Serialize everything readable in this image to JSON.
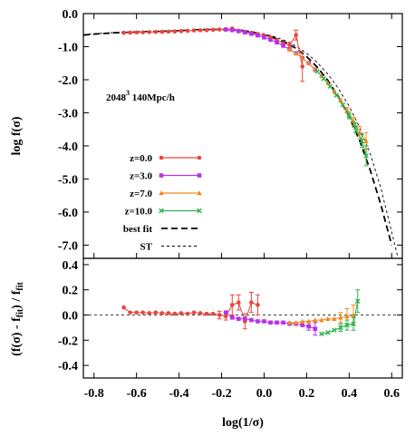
{
  "chart_data": [
    {
      "type": "scatter",
      "panel": "top",
      "xlim": [
        -0.85,
        0.65
      ],
      "ylim": [
        -7.4,
        0.0
      ],
      "yticks": [
        "0.0",
        "-1.0",
        "-2.0",
        "-3.0",
        "-4.0",
        "-5.0",
        "-6.0",
        "-7.0"
      ],
      "ytick_values": [
        0,
        -1,
        -2,
        -3,
        -4,
        -5,
        -6,
        -7
      ],
      "ylabel": "log f(σ)",
      "annotation": {
        "base": "2048",
        "sup": "3",
        "rest": " 140Mpc/h"
      },
      "legend_position": "lower-left",
      "series": [
        {
          "name": "z=0.0",
          "color": "#e8453c",
          "marker": "circle",
          "x": [
            -0.66,
            -0.63,
            -0.6,
            -0.57,
            -0.54,
            -0.51,
            -0.48,
            -0.45,
            -0.42,
            -0.39,
            -0.36,
            -0.33,
            -0.3,
            -0.27,
            -0.24,
            -0.21,
            -0.18,
            -0.15,
            -0.12,
            -0.09,
            -0.06,
            -0.03,
            0.0,
            0.03,
            0.06,
            0.09,
            0.12,
            0.15,
            0.18
          ],
          "y": [
            -0.58,
            -0.575,
            -0.57,
            -0.565,
            -0.56,
            -0.555,
            -0.55,
            -0.545,
            -0.54,
            -0.53,
            -0.52,
            -0.51,
            -0.505,
            -0.5,
            -0.49,
            -0.48,
            -0.48,
            -0.45,
            -0.52,
            -0.55,
            -0.58,
            -0.62,
            -0.66,
            -0.72,
            -0.8,
            -0.9,
            -0.95,
            -0.65,
            -1.6
          ],
          "err": [
            0,
            0,
            0,
            0,
            0,
            0,
            0,
            0,
            0,
            0,
            0,
            0,
            0,
            0,
            0,
            0,
            0,
            0,
            0,
            0,
            0,
            0,
            0,
            0,
            0,
            0,
            0.08,
            0.15,
            0.45
          ]
        },
        {
          "name": "z=3.0",
          "color": "#b632e8",
          "marker": "square",
          "x": [
            -0.18,
            -0.15,
            -0.12,
            -0.09,
            -0.06,
            -0.03,
            0.0,
            0.03,
            0.06,
            0.09,
            0.12,
            0.15,
            0.18,
            0.21,
            0.24
          ],
          "y": [
            -0.48,
            -0.5,
            -0.53,
            -0.57,
            -0.61,
            -0.66,
            -0.72,
            -0.79,
            -0.87,
            -0.97,
            -1.08,
            -1.2,
            -1.35,
            -1.5,
            -1.7
          ],
          "err": [
            0,
            0,
            0,
            0,
            0,
            0,
            0,
            0,
            0,
            0,
            0,
            0,
            0,
            0,
            0
          ]
        },
        {
          "name": "z=7.0",
          "color": "#f08a1c",
          "marker": "triangle",
          "x": [
            0.12,
            0.15,
            0.18,
            0.21,
            0.24,
            0.27,
            0.3,
            0.33,
            0.36,
            0.39,
            0.42,
            0.45,
            0.48
          ],
          "y": [
            -1.08,
            -1.2,
            -1.35,
            -1.5,
            -1.68,
            -1.88,
            -2.1,
            -2.35,
            -2.62,
            -2.92,
            -3.25,
            -3.6,
            -3.85
          ],
          "err": [
            0,
            0,
            0,
            0,
            0,
            0,
            0,
            0,
            0.05,
            0.08,
            0.12,
            0.18,
            0.25
          ]
        },
        {
          "name": "z=10.0",
          "color": "#2fb34a",
          "marker": "x",
          "x": [
            0.25,
            0.28,
            0.31,
            0.34,
            0.37,
            0.4,
            0.43,
            0.46,
            0.48
          ],
          "y": [
            -1.75,
            -1.97,
            -2.2,
            -2.47,
            -2.76,
            -3.08,
            -3.45,
            -3.85,
            -4.3
          ],
          "err": [
            0,
            0,
            0,
            0,
            0,
            0.1,
            0.15,
            0.2,
            0.3
          ]
        }
      ],
      "curves": [
        {
          "name": "best fit",
          "color": "#000000",
          "style": "dashed-thick",
          "x": [
            -0.85,
            -0.8,
            -0.75,
            -0.7,
            -0.65,
            -0.6,
            -0.55,
            -0.5,
            -0.45,
            -0.4,
            -0.35,
            -0.3,
            -0.25,
            -0.2,
            -0.15,
            -0.1,
            -0.05,
            0.0,
            0.05,
            0.1,
            0.15,
            0.2,
            0.25,
            0.3,
            0.35,
            0.4,
            0.45,
            0.5,
            0.55,
            0.6
          ],
          "y": [
            -0.65,
            -0.62,
            -0.6,
            -0.58,
            -0.57,
            -0.56,
            -0.55,
            -0.54,
            -0.53,
            -0.52,
            -0.5,
            -0.49,
            -0.48,
            -0.48,
            -0.49,
            -0.52,
            -0.57,
            -0.64,
            -0.74,
            -0.87,
            -1.05,
            -1.3,
            -1.62,
            -2.02,
            -2.52,
            -3.12,
            -3.85,
            -4.75,
            -5.8,
            -7.0
          ]
        },
        {
          "name": "ST",
          "color": "#000000",
          "style": "dashed-thin",
          "x": [
            -0.85,
            -0.8,
            -0.75,
            -0.7,
            -0.65,
            -0.6,
            -0.55,
            -0.5,
            -0.45,
            -0.4,
            -0.35,
            -0.3,
            -0.25,
            -0.2,
            -0.15,
            -0.1,
            -0.05,
            0.0,
            0.05,
            0.1,
            0.15,
            0.2,
            0.25,
            0.3,
            0.35,
            0.4,
            0.45,
            0.5,
            0.55,
            0.6,
            0.63
          ],
          "y": [
            -0.64,
            -0.61,
            -0.59,
            -0.57,
            -0.56,
            -0.55,
            -0.54,
            -0.53,
            -0.52,
            -0.51,
            -0.49,
            -0.48,
            -0.47,
            -0.47,
            -0.48,
            -0.5,
            -0.55,
            -0.61,
            -0.7,
            -0.82,
            -0.98,
            -1.2,
            -1.48,
            -1.83,
            -2.27,
            -2.8,
            -3.45,
            -4.25,
            -5.3,
            -6.6,
            -7.4
          ]
        }
      ]
    },
    {
      "type": "scatter",
      "panel": "bottom",
      "xlim": [
        -0.85,
        0.65
      ],
      "ylim": [
        -0.5,
        0.45
      ],
      "xticks": [
        "-0.8",
        "-0.6",
        "-0.4",
        "-0.2",
        "0.0",
        "0.2",
        "0.4",
        "0.6"
      ],
      "xtick_values": [
        -0.8,
        -0.6,
        -0.4,
        -0.2,
        0.0,
        0.2,
        0.4,
        0.6
      ],
      "yticks": [
        "0.4",
        "0.2",
        "0.0",
        "-0.2",
        "-0.4"
      ],
      "ytick_values": [
        0.4,
        0.2,
        0.0,
        -0.2,
        -0.4
      ],
      "xlabel": "log(1/σ)",
      "ylabel": {
        "pre": "(f(σ) - f",
        "sub1": "fit",
        "mid": ") / f",
        "sub2": "fit"
      },
      "series": [
        {
          "name": "z=0.0",
          "color": "#e8453c",
          "marker": "circle",
          "x": [
            -0.66,
            -0.63,
            -0.6,
            -0.57,
            -0.54,
            -0.51,
            -0.48,
            -0.45,
            -0.42,
            -0.39,
            -0.36,
            -0.33,
            -0.3,
            -0.27,
            -0.24,
            -0.21,
            -0.18,
            -0.15,
            -0.12,
            -0.09,
            -0.06,
            -0.03
          ],
          "y": [
            0.06,
            0.02,
            0.02,
            0.02,
            0.015,
            0.02,
            0.015,
            0.015,
            0.01,
            0.015,
            0.01,
            0.02,
            0.015,
            0.01,
            0.01,
            0.0,
            -0.01,
            0.08,
            0.1,
            -0.05,
            0.1,
            0.08
          ],
          "err": [
            0,
            0,
            0,
            0,
            0,
            0,
            0,
            0,
            0,
            0,
            0,
            0,
            0,
            0,
            0,
            0.03,
            0.03,
            0.08,
            0.06,
            0.06,
            0.08,
            0.08
          ]
        },
        {
          "name": "z=3.0",
          "color": "#b632e8",
          "marker": "square",
          "x": [
            -0.18,
            -0.15,
            -0.12,
            -0.09,
            -0.06,
            -0.03,
            0.0,
            0.03,
            0.06,
            0.09,
            0.12,
            0.15,
            0.18,
            0.21,
            0.24
          ],
          "y": [
            0.02,
            -0.02,
            -0.03,
            -0.03,
            -0.04,
            -0.05,
            -0.05,
            -0.06,
            -0.06,
            -0.06,
            -0.07,
            -0.07,
            -0.08,
            -0.09,
            -0.11
          ],
          "err": [
            0,
            0,
            0,
            0,
            0,
            0,
            0,
            0,
            0,
            0,
            0,
            0,
            0,
            0.03,
            0.05
          ]
        },
        {
          "name": "z=7.0",
          "color": "#f08a1c",
          "marker": "triangle",
          "x": [
            0.12,
            0.15,
            0.18,
            0.21,
            0.24,
            0.27,
            0.3,
            0.33,
            0.36,
            0.39,
            0.42
          ],
          "y": [
            -0.06,
            -0.06,
            -0.05,
            -0.05,
            -0.04,
            -0.04,
            -0.03,
            -0.03,
            -0.02,
            -0.01,
            0.0
          ],
          "err": [
            0,
            0,
            0,
            0,
            0,
            0,
            0,
            0,
            0.04,
            0.06,
            0.08
          ]
        },
        {
          "name": "z=10.0",
          "color": "#2fb34a",
          "marker": "x",
          "x": [
            0.27,
            0.3,
            0.33,
            0.36,
            0.39,
            0.42,
            0.44
          ],
          "y": [
            -0.15,
            -0.14,
            -0.12,
            -0.1,
            -0.08,
            -0.07,
            0.11
          ],
          "err": [
            0,
            0,
            0,
            0.03,
            0.04,
            0.05,
            0.09
          ]
        }
      ]
    }
  ]
}
